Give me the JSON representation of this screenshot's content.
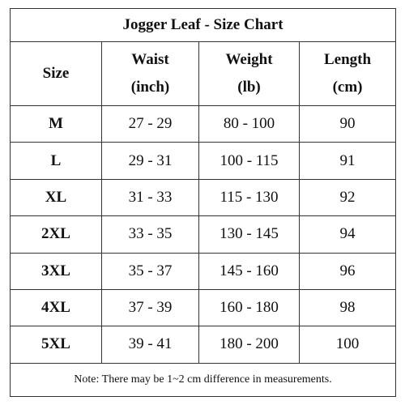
{
  "title": "Jogger Leaf - Size Chart",
  "headers": {
    "size": "Size",
    "waist": [
      "Waist",
      "(inch)"
    ],
    "weight": [
      "Weight",
      "(lb)"
    ],
    "length": [
      "Length",
      "(cm)"
    ]
  },
  "rows": [
    {
      "size": "M",
      "waist": "27 - 29",
      "weight": "80 - 100",
      "length": "90"
    },
    {
      "size": "L",
      "waist": "29 - 31",
      "weight": "100 - 115",
      "length": "91"
    },
    {
      "size": "XL",
      "waist": "31 - 33",
      "weight": "115 - 130",
      "length": "92"
    },
    {
      "size": "2XL",
      "waist": "33 - 35",
      "weight": "130 - 145",
      "length": "94"
    },
    {
      "size": "3XL",
      "waist": "35 - 37",
      "weight": "145 - 160",
      "length": "96"
    },
    {
      "size": "4XL",
      "waist": "37 - 39",
      "weight": "160 - 180",
      "length": "98"
    },
    {
      "size": "5XL",
      "waist": "39 - 41",
      "weight": "180 - 200",
      "length": "100"
    }
  ],
  "note": "Note: There may be 1~2 cm difference in measurements."
}
